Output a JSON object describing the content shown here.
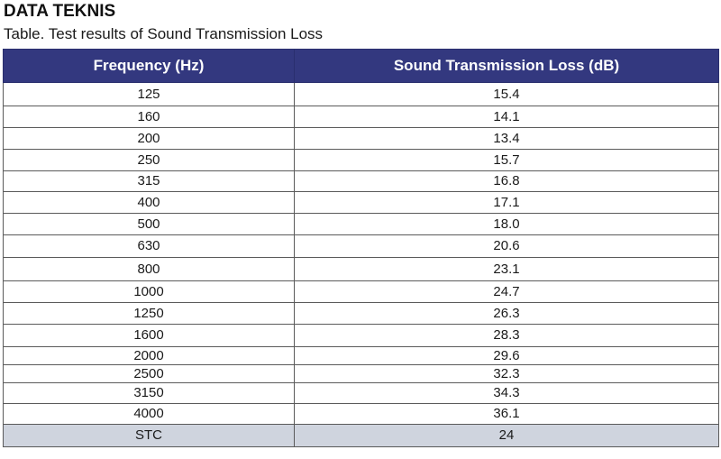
{
  "header": {
    "title": "DATA TEKNIS",
    "caption": "Table. Test results of Sound Transmission Loss"
  },
  "table": {
    "columns": [
      "Frequency (Hz)",
      "Sound Transmission Loss (dB)"
    ],
    "rows": [
      {
        "frequency": "125",
        "stl": "15.4"
      },
      {
        "frequency": "160",
        "stl": "14.1"
      },
      {
        "frequency": "200",
        "stl": "13.4"
      },
      {
        "frequency": "250",
        "stl": "15.7"
      },
      {
        "frequency": "315",
        "stl": "16.8"
      },
      {
        "frequency": "400",
        "stl": "17.1"
      },
      {
        "frequency": "500",
        "stl": "18.0"
      },
      {
        "frequency": "630",
        "stl": "20.6"
      },
      {
        "frequency": "800",
        "stl": "23.1"
      },
      {
        "frequency": "1000",
        "stl": "24.7"
      },
      {
        "frequency": "1250",
        "stl": "26.3"
      },
      {
        "frequency": "1600",
        "stl": "28.3"
      },
      {
        "frequency": "2000",
        "stl": "29.6"
      },
      {
        "frequency": "2500",
        "stl": "32.3"
      },
      {
        "frequency": "3150",
        "stl": "34.3"
      },
      {
        "frequency": "4000",
        "stl": "36.1"
      }
    ],
    "footer": {
      "label": "STC",
      "value": "24"
    }
  },
  "colors": {
    "header_background": "#33387f",
    "header_text": "#ffffff",
    "footer_background": "#cfd4de",
    "grid_lines": "#5a5a5a"
  }
}
